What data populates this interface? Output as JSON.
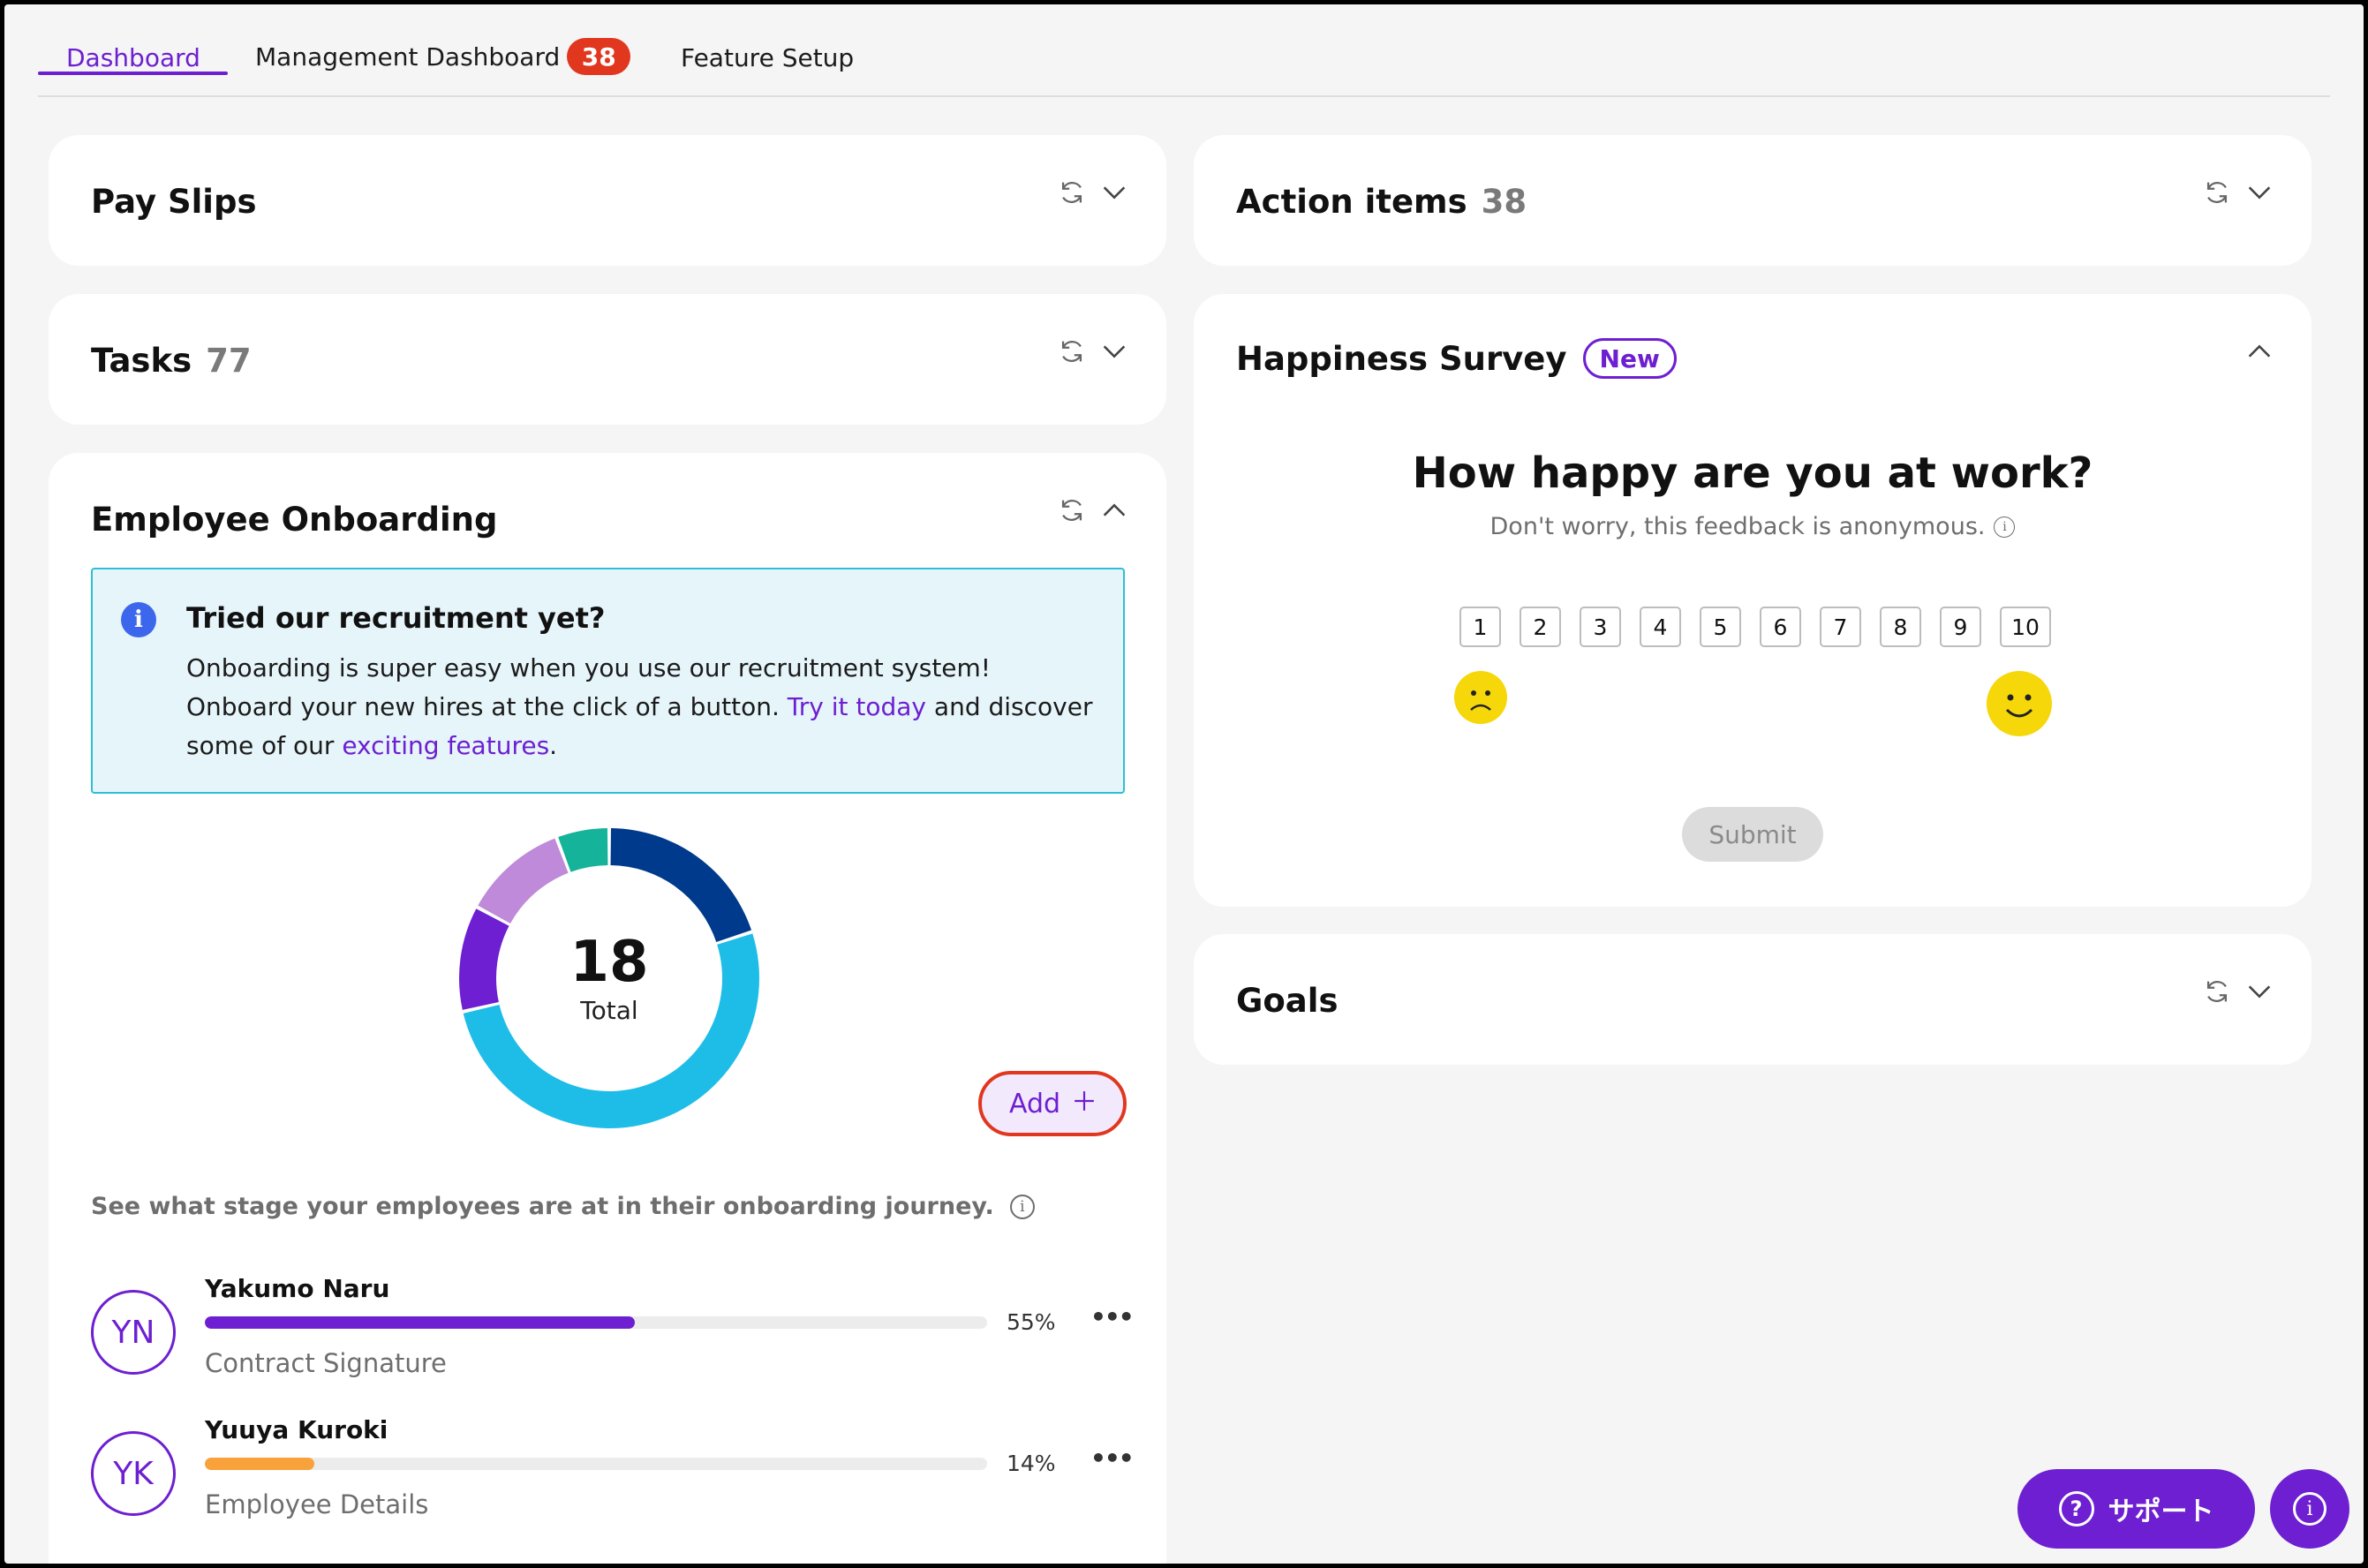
{
  "tabs": [
    {
      "label": "Dashboard",
      "active": true
    },
    {
      "label": "Management Dashboard",
      "badge": "38"
    },
    {
      "label": "Feature Setup"
    }
  ],
  "cards": {
    "pay_slips": {
      "title": "Pay Slips"
    },
    "tasks": {
      "title": "Tasks",
      "count": "77"
    },
    "action_items": {
      "title": "Action items",
      "count": "38"
    },
    "goals": {
      "title": "Goals"
    }
  },
  "onboarding": {
    "title": "Employee Onboarding",
    "banner": {
      "heading": "Tried our recruitment yet?",
      "body_1": "Onboarding is super easy when you use our recruitment system! Onboard your new hires at the click of a button. ",
      "link_1": "Try it today",
      "body_2": " and discover some of our ",
      "link_2": "exciting features",
      "body_3": "."
    },
    "donut": {
      "total": "18",
      "total_label": "Total",
      "segments": [
        {
          "value": 3.5,
          "color": "#003a8c"
        },
        {
          "value": 9,
          "color": "#1dbde8"
        },
        {
          "value": 2,
          "color": "#6d1fd1"
        },
        {
          "value": 2,
          "color": "#bf8ad9"
        },
        {
          "value": 1,
          "color": "#14b39a"
        }
      ]
    },
    "add_label": "Add",
    "stage_description": "See what stage your employees are at in their onboarding journey.",
    "employees": [
      {
        "initials": "YN",
        "name": "Yakumo Naru",
        "progress": 0.55,
        "percent": "55%",
        "stage": "Contract Signature",
        "color": "#6d1fd1"
      },
      {
        "initials": "YK",
        "name": "Yuuya Kuroki",
        "progress": 0.14,
        "percent": "14%",
        "stage": "Employee Details",
        "color": "#f9a13a"
      }
    ]
  },
  "survey": {
    "title": "Happiness Survey",
    "badge": "New",
    "question": "How happy are you at work?",
    "subtext": "Don't worry, this feedback is anonymous.",
    "scale": [
      "1",
      "2",
      "3",
      "4",
      "5",
      "6",
      "7",
      "8",
      "9",
      "10"
    ],
    "submit_label": "Submit"
  },
  "support": {
    "label": "サポート"
  },
  "icons": {
    "refresh": "refresh-icon",
    "chevron_down": "chevron-down-icon",
    "chevron_up": "chevron-up-icon",
    "info": "info-icon",
    "plus": "plus-icon",
    "more": "more-horizontal-icon",
    "sad": "sad-face-icon",
    "happy": "happy-face-icon",
    "help": "help-circle-icon"
  },
  "colors": {
    "accent": "#6d1fd1",
    "badge_red": "#e0371e",
    "banner_bg": "#e6f5fa",
    "banner_border": "#2cbfd7",
    "emoji_yellow": "#f6d70a"
  }
}
